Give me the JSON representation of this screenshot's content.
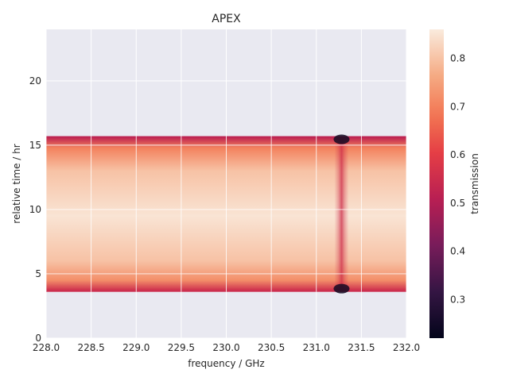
{
  "chart_data": {
    "type": "heatmap",
    "title": "APEX",
    "xlabel": "frequency / GHz",
    "ylabel": "relative time / hr",
    "xlim": [
      228.0,
      232.0
    ],
    "ylim": [
      0,
      24
    ],
    "x_ticks": [
      "228.0",
      "228.5",
      "229.0",
      "229.5",
      "230.0",
      "230.5",
      "231.0",
      "231.5",
      "232.0"
    ],
    "y_ticks": [
      "0",
      "5",
      "10",
      "15",
      "20"
    ],
    "x_tick_values": [
      228.0,
      228.5,
      229.0,
      229.5,
      230.0,
      230.5,
      231.0,
      231.5,
      232.0
    ],
    "y_tick_values": [
      0,
      5,
      10,
      15,
      20
    ],
    "data_time_range": [
      3.6,
      15.7
    ],
    "absorption_line_ghz": 231.28,
    "colorbar": {
      "label": "transmission",
      "range": [
        0.22,
        0.86
      ],
      "ticks": [
        "0.3",
        "0.4",
        "0.5",
        "0.6",
        "0.7",
        "0.8"
      ],
      "tick_values": [
        0.3,
        0.4,
        0.5,
        0.6,
        0.7,
        0.8
      ],
      "colormap": "rocket"
    },
    "transmission_samples": [
      {
        "time_hr": 3.7,
        "transmission": 0.55
      },
      {
        "time_hr": 4.5,
        "transmission": 0.72
      },
      {
        "time_hr": 6.0,
        "transmission": 0.8
      },
      {
        "time_hr": 9.5,
        "transmission": 0.85
      },
      {
        "time_hr": 13.0,
        "transmission": 0.8
      },
      {
        "time_hr": 14.8,
        "transmission": 0.7
      },
      {
        "time_hr": 15.6,
        "transmission": 0.52
      }
    ],
    "grid": true,
    "background_color": "#e9e9f1",
    "grid_color": "#ffffff"
  }
}
